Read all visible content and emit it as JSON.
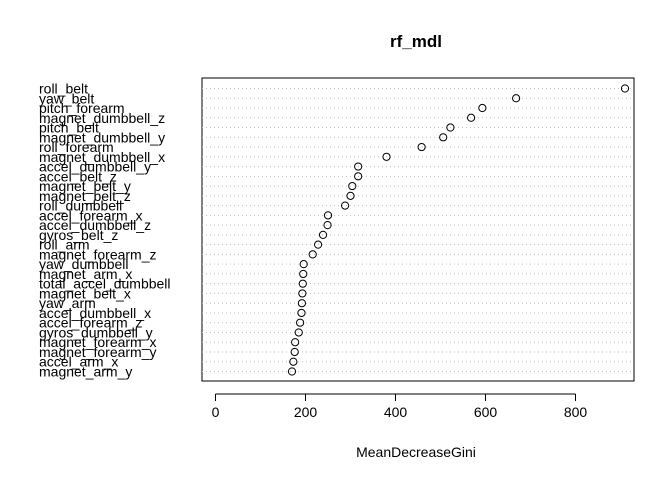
{
  "chart_data": {
    "type": "scatter",
    "title": "rf_mdl",
    "xlabel": "MeanDecreaseGini",
    "ylabel": "",
    "xlim": [
      -30,
      930
    ],
    "xticks": [
      0,
      200,
      400,
      600,
      800
    ],
    "xtick_labels": [
      "0",
      "200",
      "400",
      "600",
      "800"
    ],
    "grid": "dotted horizontal",
    "marker": "open-circle",
    "categories": [
      "roll_belt",
      "yaw_belt",
      "pitch_forearm",
      "magnet_dumbbell_z",
      "pitch_belt",
      "magnet_dumbbell_y",
      "roll_forearm",
      "magnet_dumbbell_x",
      "accel_dumbbell_y",
      "accel_belt_z",
      "magnet_belt_y",
      "magnet_belt_z",
      "roll_dumbbell",
      "accel_forearm_x",
      "accel_dumbbell_z",
      "gyros_belt_z",
      "roll_arm",
      "magnet_forearm_z",
      "yaw_dumbbell",
      "magnet_arm_x",
      "total_accel_dumbbell",
      "magnet_belt_x",
      "yaw_arm",
      "accel_dumbbell_x",
      "accel_forearm_z",
      "gyros_dumbbell_y",
      "magnet_forearm_x",
      "magnet_forearm_y",
      "accel_arm_x",
      "magnet_arm_y"
    ],
    "values": [
      910,
      668,
      593,
      568,
      522,
      506,
      458,
      380,
      317,
      317,
      304,
      300,
      288,
      250,
      249,
      239,
      228,
      216,
      196,
      195,
      194,
      193,
      192,
      191,
      188,
      185,
      177,
      176,
      173,
      170
    ]
  }
}
